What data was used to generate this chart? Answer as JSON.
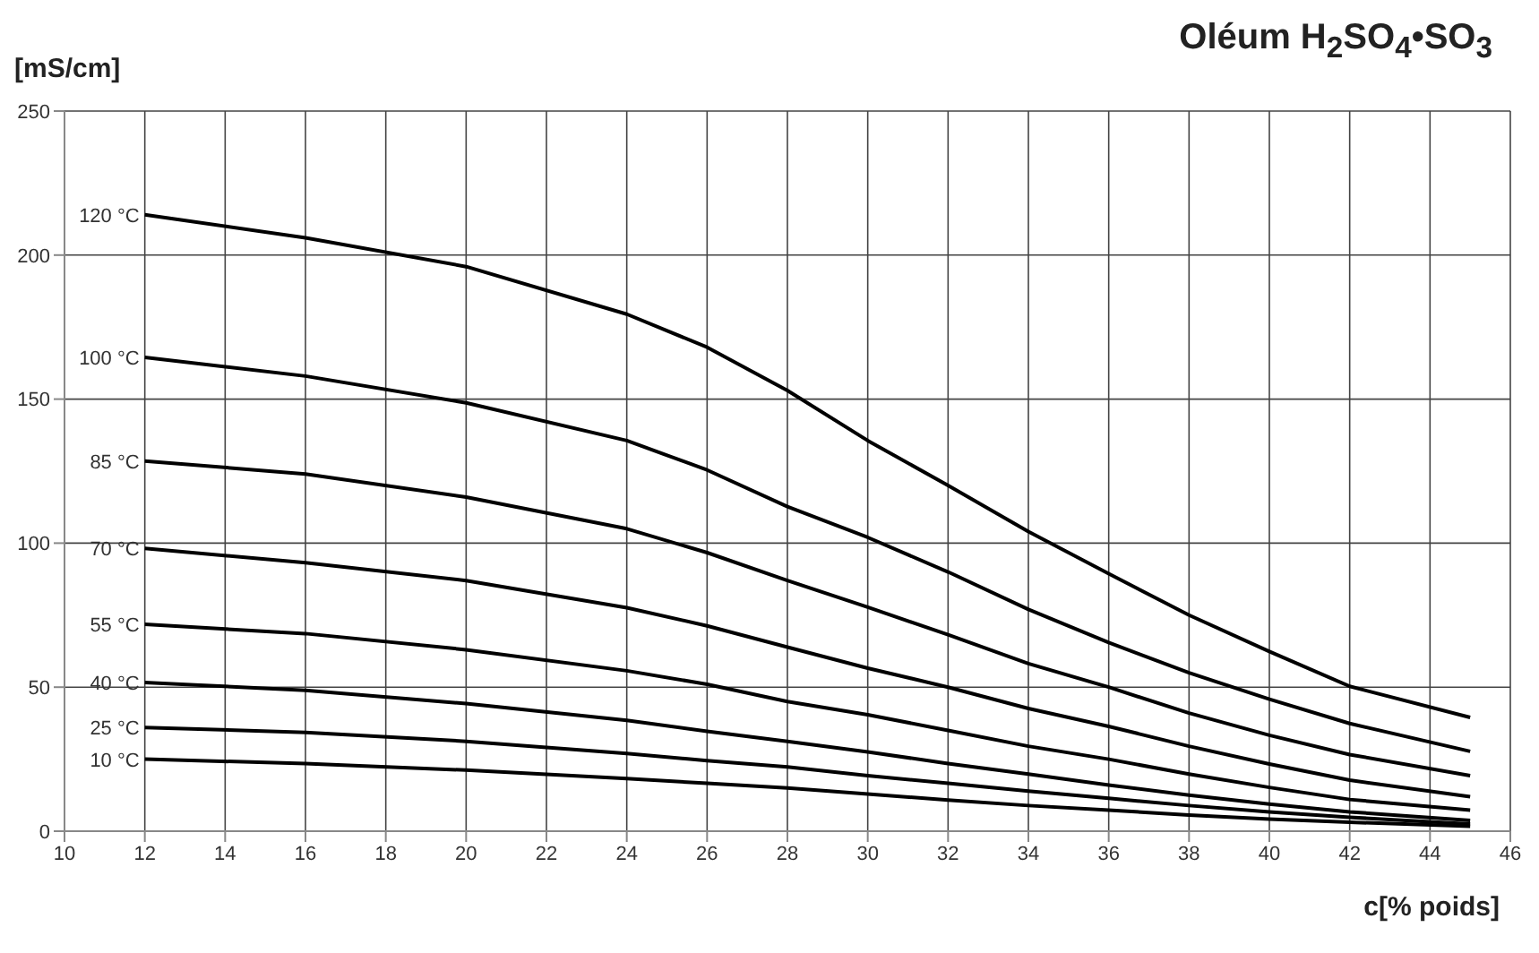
{
  "chart_data": {
    "type": "line",
    "title": "Oléum H$_{2}$SO$_{4}$•SO$_{3}$",
    "xlabel": "c[% poids]",
    "ylabel": "[mS/cm]",
    "x": [
      12,
      16,
      20,
      24,
      26,
      28,
      30,
      32,
      34,
      36,
      38,
      40,
      42,
      45
    ],
    "series": [
      {
        "name": "120 °C",
        "color": "#000000",
        "values": [
          214,
          206,
          196,
          179.5,
          168,
          153,
          135.6,
          120,
          104,
          89.4,
          75,
          62.4,
          50.3,
          39.5
        ]
      },
      {
        "name": "100 °C",
        "color": "#000000",
        "values": [
          164.5,
          158,
          148.7,
          135.6,
          125.4,
          112.7,
          102,
          90,
          77,
          65.5,
          55,
          45.8,
          37.4,
          27.7
        ]
      },
      {
        "name": "85 °C",
        "color": "#000000",
        "values": [
          128.5,
          124,
          116,
          105,
          96.7,
          87,
          77.8,
          68.2,
          58.2,
          50,
          41,
          33.3,
          26.6,
          19.3
        ]
      },
      {
        "name": "70 °C",
        "color": "#000000",
        "values": [
          98.2,
          93.2,
          87,
          77.6,
          71.3,
          63.9,
          56.6,
          50,
          42.6,
          36.4,
          29.5,
          23.3,
          17.7,
          12
        ]
      },
      {
        "name": "55 °C",
        "color": "#000000",
        "values": [
          71.8,
          68.6,
          63,
          55.7,
          51,
          45,
          40.4,
          35,
          29.5,
          25,
          19.8,
          15.2,
          11,
          7.3
        ]
      },
      {
        "name": "40 °C",
        "color": "#000000",
        "values": [
          51.6,
          48.9,
          44.3,
          38.5,
          34.7,
          31.2,
          27.5,
          23.5,
          19.8,
          16,
          12.5,
          9.4,
          6.7,
          3.7
        ]
      },
      {
        "name": "25 °C",
        "color": "#000000",
        "values": [
          36,
          34.3,
          31.2,
          27,
          24.5,
          22.3,
          19.3,
          16.6,
          13.9,
          11.4,
          8.9,
          6.7,
          4.8,
          2.5
        ]
      },
      {
        "name": "10 °C",
        "color": "#000000",
        "values": [
          25,
          23.5,
          21.2,
          18.3,
          16.6,
          15,
          12.9,
          10.8,
          8.9,
          7.3,
          5.6,
          4.2,
          3.1,
          1.7
        ]
      }
    ],
    "xlim": [
      10,
      46
    ],
    "xticks": [
      10,
      12,
      14,
      16,
      18,
      20,
      22,
      24,
      26,
      28,
      30,
      32,
      34,
      36,
      38,
      40,
      42,
      44,
      46
    ],
    "ylim": [
      0,
      250
    ],
    "yticks": [
      0,
      50,
      100,
      150,
      200,
      250
    ],
    "grid": true,
    "legend": false,
    "marker": "none",
    "line_style": "solid"
  }
}
